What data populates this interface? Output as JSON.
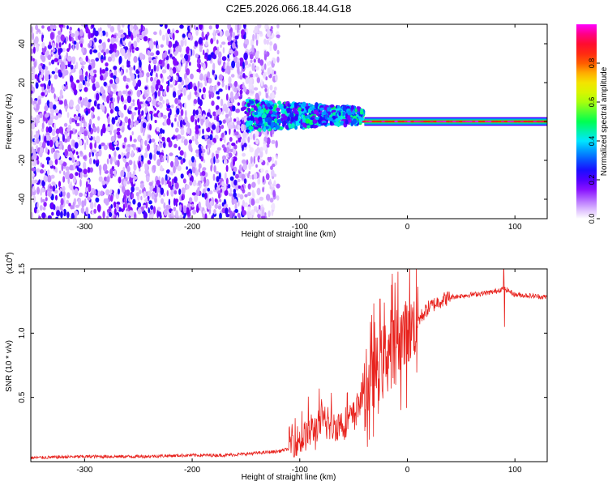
{
  "title": "C2E5.2026.066.18.44.G18",
  "chart_data": [
    {
      "type": "heatmap",
      "xlabel": "Height of straight line (km)",
      "ylabel": "Frequency (Hz)",
      "xlim": [
        -350,
        130
      ],
      "ylim": [
        -50,
        50
      ],
      "xticks": [
        -300,
        -200,
        -100,
        0,
        100
      ],
      "yticks": [
        -40,
        -20,
        0,
        20,
        40
      ],
      "colorbar": {
        "label": "Normalized spectral amplitude",
        "range": [
          0,
          1
        ],
        "ticks": [
          "0.0",
          "0.2",
          "0.4",
          "0.6",
          "0.8"
        ],
        "colors": [
          "#ffffff",
          "#8000ff",
          "#0000ff",
          "#00ffff",
          "#00ff00",
          "#ffff00",
          "#ff0000",
          "#ff00ff"
        ]
      },
      "features": [
        {
          "x_range": [
            -350,
            -150
          ],
          "freq_spread": 50,
          "amplitude": 0.2,
          "description_color": "#6a00e0"
        },
        {
          "x_range": [
            -150,
            -40
          ],
          "freq_center": 3,
          "freq_spread": 8,
          "amplitude": 0.45
        },
        {
          "x_range": [
            -40,
            130
          ],
          "freq_center": 0,
          "freq_spread": 2,
          "amplitude": 0.95
        }
      ]
    },
    {
      "type": "line",
      "xlabel": "Height of straight line (km)",
      "ylabel": "SNR (10 * v/v)",
      "multiplier_label": "(x10",
      "multiplier_exp": "4",
      "multiplier_close": ")",
      "xlim": [
        -350,
        130
      ],
      "ylim": [
        0,
        1.5
      ],
      "xticks": [
        -300,
        -200,
        -100,
        0,
        100
      ],
      "yticks": [
        "0.5",
        "1.0",
        "1.5"
      ],
      "series": [
        {
          "color": "#e8231e",
          "points": [
            [
              -350,
              0.03
            ],
            [
              -300,
              0.04
            ],
            [
              -250,
              0.04
            ],
            [
              -200,
              0.05
            ],
            [
              -170,
              0.05
            ],
            [
              -150,
              0.06
            ],
            [
              -120,
              0.08
            ],
            [
              -100,
              0.12
            ],
            [
              -90,
              0.18
            ],
            [
              -80,
              0.25
            ],
            [
              -70,
              0.22
            ],
            [
              -60,
              0.25
            ],
            [
              -50,
              0.3
            ],
            [
              -40,
              0.5
            ],
            [
              -35,
              0.6
            ],
            [
              -30,
              0.7
            ],
            [
              -25,
              0.75
            ],
            [
              -20,
              0.85
            ],
            [
              -15,
              0.9
            ],
            [
              -10,
              0.95
            ],
            [
              0,
              1.0
            ],
            [
              5,
              1.05
            ],
            [
              10,
              1.1
            ],
            [
              20,
              1.2
            ],
            [
              30,
              1.25
            ],
            [
              40,
              1.28
            ],
            [
              60,
              1.3
            ],
            [
              80,
              1.32
            ],
            [
              90,
              1.35
            ],
            [
              100,
              1.3
            ],
            [
              130,
              1.28
            ]
          ]
        }
      ]
    }
  ]
}
